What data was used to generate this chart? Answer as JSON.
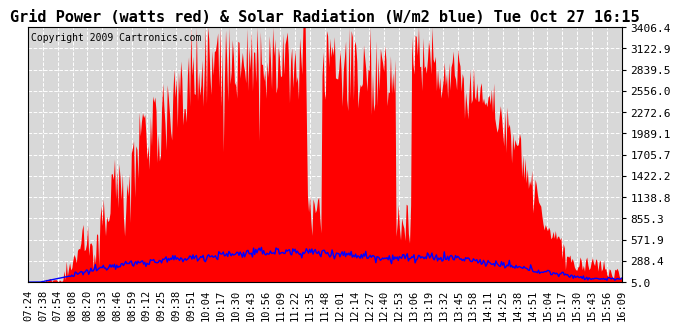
{
  "title": "Grid Power (watts red) & Solar Radiation (W/m2 blue) Tue Oct 27 16:15",
  "copyright": "Copyright 2009 Cartronics.com",
  "y_ticks": [
    5.0,
    288.4,
    571.9,
    855.3,
    1138.8,
    1422.2,
    1705.7,
    1989.1,
    2272.6,
    2556.0,
    2839.5,
    3122.9,
    3406.4
  ],
  "x_labels": [
    "07:24",
    "07:38",
    "07:54",
    "08:08",
    "08:20",
    "08:33",
    "08:46",
    "08:59",
    "09:12",
    "09:25",
    "09:38",
    "09:51",
    "10:04",
    "10:17",
    "10:30",
    "10:43",
    "10:56",
    "11:09",
    "11:22",
    "11:35",
    "11:48",
    "12:01",
    "12:14",
    "12:27",
    "12:40",
    "12:53",
    "13:06",
    "13:19",
    "13:32",
    "13:45",
    "13:58",
    "14:11",
    "14:25",
    "14:38",
    "14:51",
    "15:04",
    "15:17",
    "15:30",
    "15:43",
    "15:56",
    "16:09"
  ],
  "bg_color": "#ffffff",
  "plot_bg": "#d8d8d8",
  "grid_color": "#ffffff",
  "red_color": "#ff0000",
  "blue_color": "#0000ff",
  "title_fontsize": 11,
  "tick_fontsize": 8,
  "copyright_fontsize": 7
}
